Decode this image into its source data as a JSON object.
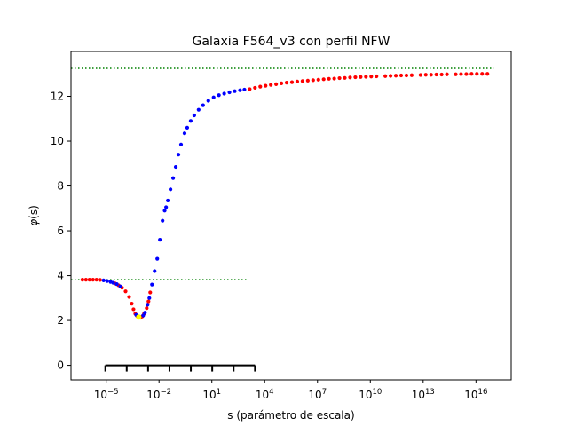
{
  "chart_data": {
    "type": "scatter",
    "title": "Galaxia F564_v3 con perfil NFW",
    "xlabel": "s (parámetro de escala)",
    "ylabel_base": "φ",
    "ylabel_arg": "(s)",
    "xscale": "log",
    "xlim_log10": [
      -7,
      18
    ],
    "ylim": [
      -0.65,
      14.0
    ],
    "x_ticks": [
      {
        "exp": -5,
        "base": "10",
        "sup": "−5"
      },
      {
        "exp": -2,
        "base": "10",
        "sup": "−2"
      },
      {
        "exp": 1,
        "base": "10",
        "sup": "1"
      },
      {
        "exp": 4,
        "base": "10",
        "sup": "4"
      },
      {
        "exp": 7,
        "base": "10",
        "sup": "7"
      },
      {
        "exp": 10,
        "base": "10",
        "sup": "10"
      },
      {
        "exp": 13,
        "base": "10",
        "sup": "13"
      },
      {
        "exp": 16,
        "base": "10",
        "sup": "16"
      }
    ],
    "y_ticks": [
      {
        "value": 0,
        "label": "0"
      },
      {
        "value": 2,
        "label": "2"
      },
      {
        "value": 4,
        "label": "4"
      },
      {
        "value": 6,
        "label": "6"
      },
      {
        "value": 8,
        "label": "8"
      },
      {
        "value": 10,
        "label": "10"
      },
      {
        "value": 12,
        "label": "12"
      }
    ],
    "reference_lines": [
      {
        "y": 13.25,
        "x_from_log10": -7,
        "x_to_log10": 17.0,
        "color": "#008000",
        "style": "dotted"
      },
      {
        "y": 3.82,
        "x_from_log10": -7,
        "x_to_log10": 3.0,
        "color": "#008000",
        "style": "dotted"
      }
    ],
    "minimum_marker": {
      "x_log10": -3.15,
      "y": 2.15,
      "color": "#ffff00"
    },
    "scale_bar": {
      "y": 0,
      "x_from_log10": -5.05,
      "x_to_log10": 3.45,
      "ticks": 8,
      "color": "#000000"
    },
    "series": [
      {
        "name": "red",
        "color": "#ff0000",
        "points_log10": [
          [
            -6.35,
            3.82
          ],
          [
            -6.15,
            3.82
          ],
          [
            -5.95,
            3.82
          ],
          [
            -5.75,
            3.82
          ],
          [
            -5.55,
            3.82
          ],
          [
            -5.35,
            3.81
          ],
          [
            -4.5,
            3.65
          ],
          [
            -4.3,
            3.57
          ],
          [
            -4.1,
            3.46
          ],
          [
            -3.9,
            3.3
          ],
          [
            -3.7,
            3.05
          ],
          [
            -3.55,
            2.75
          ],
          [
            -3.45,
            2.5
          ],
          [
            -3.35,
            2.3
          ],
          [
            -3.25,
            2.2
          ],
          [
            -3.05,
            2.12
          ],
          [
            -2.95,
            2.18
          ],
          [
            -2.85,
            2.3
          ],
          [
            -2.7,
            2.55
          ],
          [
            -2.6,
            2.85
          ],
          [
            -2.5,
            3.25
          ],
          [
            3.15,
            12.32
          ],
          [
            3.45,
            12.38
          ],
          [
            3.75,
            12.43
          ],
          [
            4.05,
            12.47
          ],
          [
            4.35,
            12.51
          ],
          [
            4.65,
            12.54
          ],
          [
            4.95,
            12.58
          ],
          [
            5.25,
            12.61
          ],
          [
            5.55,
            12.63
          ],
          [
            5.85,
            12.66
          ],
          [
            6.15,
            12.68
          ],
          [
            6.45,
            12.7
          ],
          [
            6.75,
            12.72
          ],
          [
            7.05,
            12.74
          ],
          [
            7.35,
            12.76
          ],
          [
            7.65,
            12.78
          ],
          [
            7.95,
            12.79
          ],
          [
            8.25,
            12.81
          ],
          [
            8.55,
            12.82
          ],
          [
            8.85,
            12.84
          ],
          [
            9.15,
            12.85
          ],
          [
            9.45,
            12.86
          ],
          [
            9.75,
            12.87
          ],
          [
            10.05,
            12.88
          ],
          [
            10.35,
            12.89
          ],
          [
            10.85,
            12.9
          ],
          [
            11.15,
            12.91
          ],
          [
            11.45,
            12.92
          ],
          [
            11.75,
            12.93
          ],
          [
            12.05,
            12.93
          ],
          [
            12.35,
            12.94
          ],
          [
            12.85,
            12.95
          ],
          [
            13.15,
            12.96
          ],
          [
            13.45,
            12.96
          ],
          [
            13.75,
            12.97
          ],
          [
            14.05,
            12.97
          ],
          [
            14.35,
            12.98
          ],
          [
            14.85,
            12.98
          ],
          [
            15.15,
            12.99
          ],
          [
            15.45,
            12.99
          ],
          [
            15.75,
            13.0
          ],
          [
            16.05,
            13.0
          ],
          [
            16.35,
            13.0
          ],
          [
            16.65,
            13.0
          ]
        ]
      },
      {
        "name": "blue",
        "color": "#0000ff",
        "points_log10": [
          [
            -5.15,
            3.79
          ],
          [
            -4.95,
            3.76
          ],
          [
            -4.75,
            3.72
          ],
          [
            -4.6,
            3.68
          ],
          [
            -4.4,
            3.62
          ],
          [
            -4.2,
            3.52
          ],
          [
            -3.3,
            2.25
          ],
          [
            -3.15,
            2.18
          ],
          [
            -2.9,
            2.22
          ],
          [
            -2.8,
            2.35
          ],
          [
            -2.65,
            2.7
          ],
          [
            -2.55,
            3.0
          ],
          [
            -2.4,
            3.6
          ],
          [
            -2.25,
            4.2
          ],
          [
            -2.1,
            4.75
          ],
          [
            -1.95,
            5.6
          ],
          [
            -1.8,
            6.45
          ],
          [
            -1.68,
            6.9
          ],
          [
            -1.6,
            7.05
          ],
          [
            -1.5,
            7.35
          ],
          [
            -1.35,
            7.85
          ],
          [
            -1.2,
            8.35
          ],
          [
            -1.05,
            8.85
          ],
          [
            -0.9,
            9.4
          ],
          [
            -0.75,
            9.85
          ],
          [
            -0.55,
            10.35
          ],
          [
            -0.4,
            10.6
          ],
          [
            -0.2,
            10.9
          ],
          [
            0.0,
            11.15
          ],
          [
            0.25,
            11.4
          ],
          [
            0.5,
            11.6
          ],
          [
            0.8,
            11.8
          ],
          [
            1.1,
            11.95
          ],
          [
            1.4,
            12.05
          ],
          [
            1.7,
            12.12
          ],
          [
            2.0,
            12.18
          ],
          [
            2.3,
            12.23
          ],
          [
            2.6,
            12.27
          ],
          [
            2.85,
            12.3
          ]
        ]
      }
    ]
  }
}
